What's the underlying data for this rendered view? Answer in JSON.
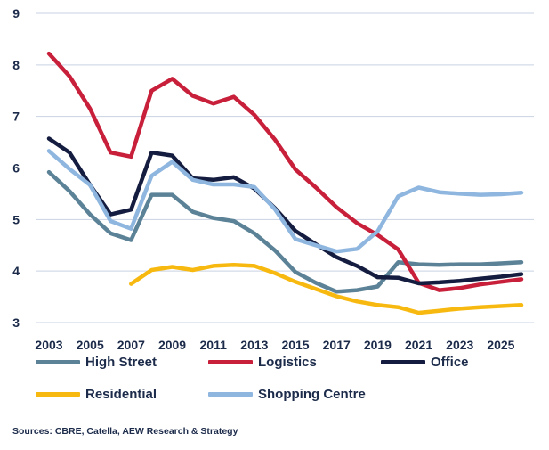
{
  "chart_data": {
    "type": "line",
    "title": "",
    "xlabel": "",
    "ylabel": "",
    "ylim": [
      3,
      9
    ],
    "xlim": [
      2003,
      2026
    ],
    "y_ticks": [
      "3",
      "4",
      "5",
      "6",
      "7",
      "8",
      "9"
    ],
    "x_ticks": [
      "2003",
      "2005",
      "2007",
      "2009",
      "2011",
      "2013",
      "2015",
      "2017",
      "2019",
      "2021",
      "2023",
      "2025"
    ],
    "grid": "horizontal",
    "legend_position": "bottom",
    "x": [
      2003,
      2004,
      2005,
      2006,
      2007,
      2008,
      2009,
      2010,
      2011,
      2012,
      2013,
      2014,
      2015,
      2016,
      2017,
      2018,
      2019,
      2020,
      2021,
      2022,
      2023,
      2024,
      2025,
      2026
    ],
    "series": [
      {
        "name": "High Street",
        "color": "#5b8296",
        "values": [
          5.92,
          5.55,
          5.1,
          4.73,
          4.6,
          5.48,
          5.48,
          5.15,
          5.03,
          4.97,
          4.73,
          4.4,
          3.98,
          3.77,
          3.6,
          3.63,
          3.7,
          4.17,
          4.13,
          4.12,
          4.13,
          4.13,
          4.15,
          4.17
        ]
      },
      {
        "name": "Logistics",
        "color": "#c8203a",
        "values": [
          8.22,
          7.78,
          7.15,
          6.3,
          6.22,
          7.5,
          7.73,
          7.4,
          7.25,
          7.38,
          7.03,
          6.55,
          5.97,
          5.62,
          5.24,
          4.93,
          4.7,
          4.42,
          3.77,
          3.63,
          3.67,
          3.74,
          3.79,
          3.84
        ]
      },
      {
        "name": "Office",
        "color": "#141c3f",
        "values": [
          6.57,
          6.3,
          5.67,
          5.1,
          5.19,
          6.3,
          6.24,
          5.8,
          5.77,
          5.82,
          5.6,
          5.22,
          4.78,
          4.52,
          4.27,
          4.1,
          3.88,
          3.87,
          3.76,
          3.78,
          3.81,
          3.85,
          3.89,
          3.94
        ]
      },
      {
        "name": "Residential",
        "color": "#f7b90f",
        "values": [
          null,
          null,
          null,
          null,
          3.75,
          4.02,
          4.08,
          4.02,
          4.1,
          4.12,
          4.1,
          3.96,
          3.79,
          3.65,
          3.51,
          3.41,
          3.34,
          3.3,
          3.19,
          3.23,
          3.27,
          3.3,
          3.32,
          3.34
        ]
      },
      {
        "name": "Shopping Centre",
        "color": "#8eb6df",
        "values": [
          6.33,
          5.98,
          5.67,
          4.97,
          4.82,
          5.85,
          6.12,
          5.77,
          5.68,
          5.68,
          5.63,
          5.2,
          4.62,
          4.5,
          4.38,
          4.43,
          4.77,
          5.45,
          5.62,
          5.53,
          5.5,
          5.48,
          5.49,
          5.52
        ]
      }
    ]
  },
  "legend": {
    "items": [
      {
        "label": "High Street",
        "color": "#5b8296"
      },
      {
        "label": "Logistics",
        "color": "#c8203a"
      },
      {
        "label": "Office",
        "color": "#141c3f"
      },
      {
        "label": "Residential",
        "color": "#f7b90f"
      },
      {
        "label": "Shopping Centre",
        "color": "#8eb6df"
      }
    ]
  },
  "source_note": "Sources: CBRE, Catella, AEW Research & Strategy"
}
